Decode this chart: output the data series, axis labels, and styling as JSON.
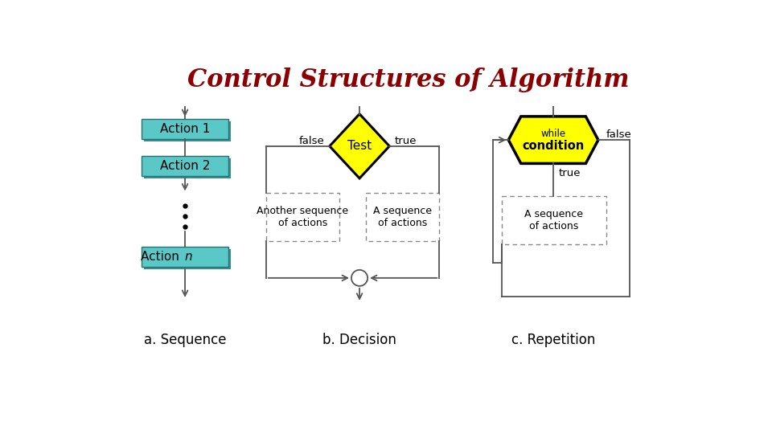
{
  "title": "Control Structures of Algorithm",
  "title_color": "#8B0000",
  "title_fontsize": 22,
  "bg_color": "#ffffff",
  "seq_label": "a. Sequence",
  "dec_label": "b. Decision",
  "rep_label": "c. Repetition",
  "action_box_color": "#5BC8C8",
  "shadow_color": "#4a9999",
  "diamond_color": "#FFFF00",
  "hexagon_color": "#FFFF00",
  "line_color": "#555555",
  "lw": 1.3
}
